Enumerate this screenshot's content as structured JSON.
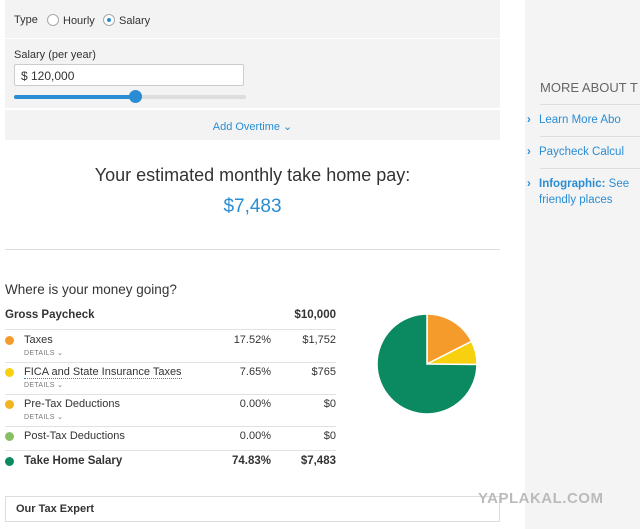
{
  "form": {
    "type_label": "Type",
    "type_options": [
      "Hourly",
      "Salary"
    ],
    "salary_label": "Salary (per year)",
    "salary_value": "$ 120,000",
    "add_overtime": "Add Overtime"
  },
  "result": {
    "heading": "Your estimated monthly take home pay:",
    "amount": "$7,483"
  },
  "breakdown": {
    "heading": "Where is your money going?",
    "gross_label": "Gross Paycheck",
    "gross_amount": "$10,000",
    "rows": [
      {
        "label": "Taxes",
        "details": "DETAILS",
        "percent": "17.52%",
        "amount": "$1,752"
      },
      {
        "label": "FICA and State Insurance Taxes",
        "details": "DETAILS",
        "percent": "7.65%",
        "amount": "$765"
      },
      {
        "label": "Pre-Tax Deductions",
        "details": "DETAILS",
        "percent": "0.00%",
        "amount": "$0"
      },
      {
        "label": "Post-Tax Deductions",
        "percent": "0.00%",
        "amount": "$0"
      },
      {
        "label": "Take Home Salary",
        "percent": "74.83%",
        "amount": "$7,483"
      }
    ]
  },
  "chart_data": {
    "type": "pie",
    "values": [
      17.52,
      7.65,
      0,
      0,
      74.83
    ],
    "colors": [
      "#f49b2c",
      "#f7d00f",
      "#f2b41f",
      "#86c063",
      "#0b8a61"
    ]
  },
  "expert": "Our Tax Expert",
  "sidebar": {
    "heading": "MORE ABOUT T",
    "links": [
      "Learn More Abo",
      "Paycheck Calcul"
    ],
    "infographic": {
      "bold": "Infographic:",
      "text": "See friendly places"
    }
  },
  "watermark": "YAPLAKAL.COM"
}
